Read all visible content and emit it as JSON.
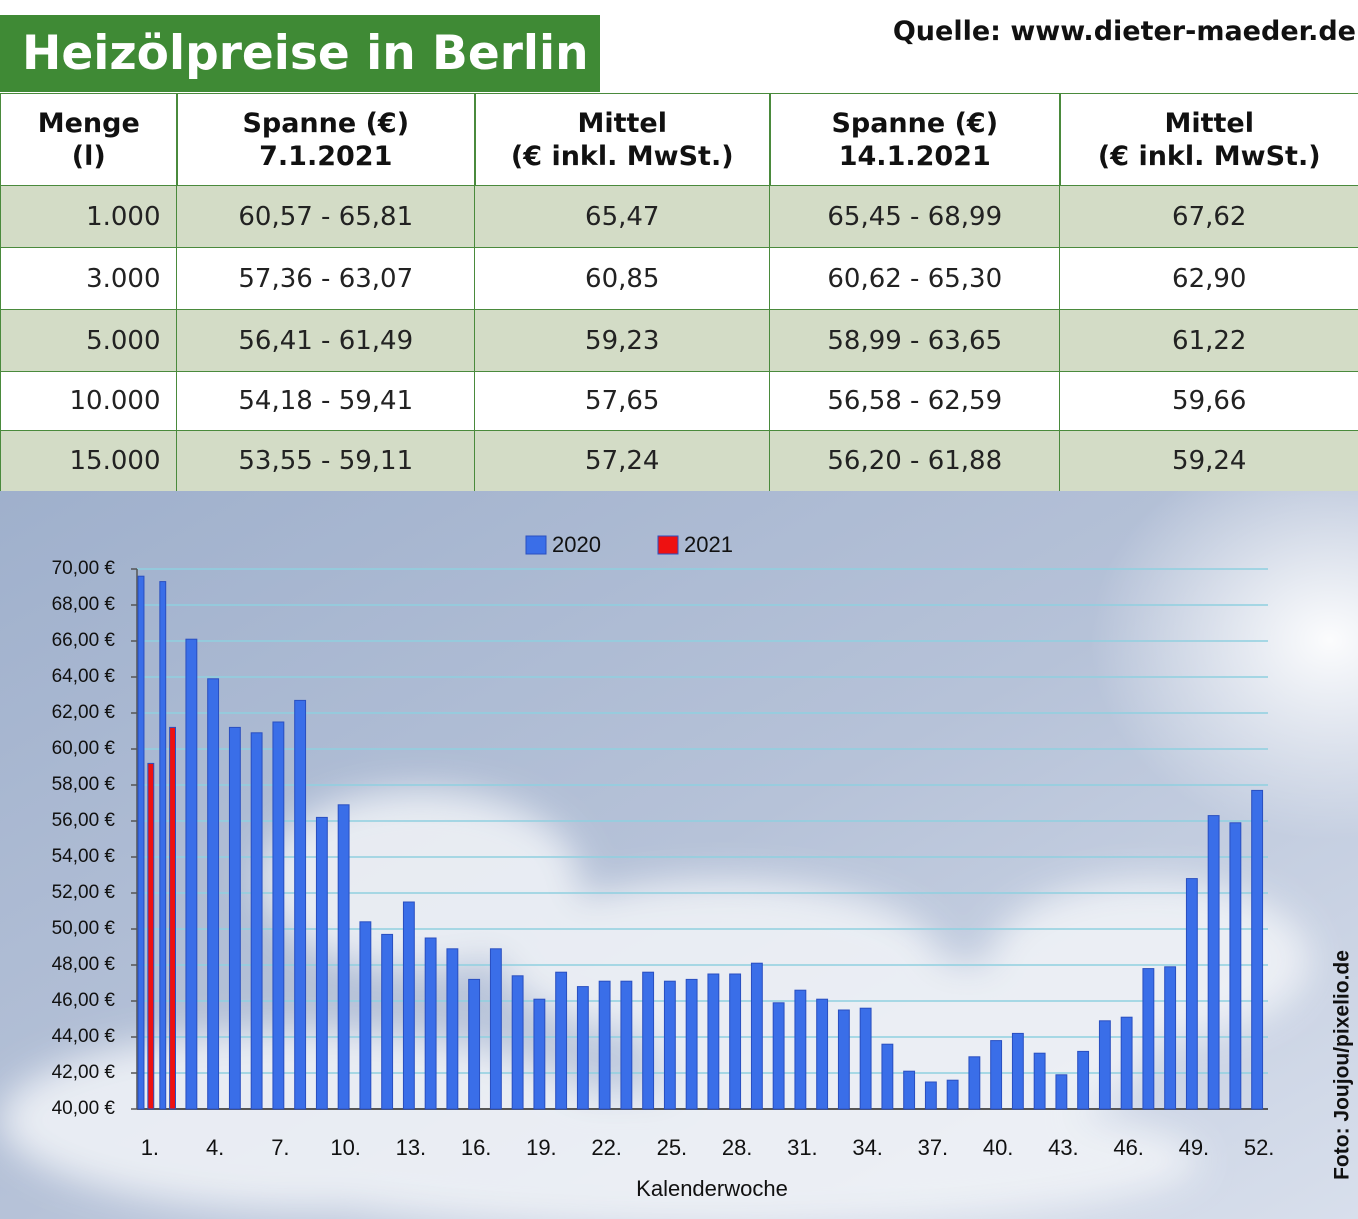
{
  "header": {
    "title": "Heizölpreise in Berlin",
    "source": "Quelle: www.dieter-maeder.de"
  },
  "table": {
    "columns": [
      [
        "Menge",
        "(l)"
      ],
      [
        "Spanne (€)",
        "7.1.2021"
      ],
      [
        "Mittel",
        "(€ inkl. MwSt.)"
      ],
      [
        "Spanne (€)",
        "14.1.2021"
      ],
      [
        "Mittel",
        "(€ inkl. MwSt.)"
      ]
    ],
    "rows": [
      [
        "1.000",
        "60,57 - 65,81",
        "65,47",
        "65,45 - 68,99",
        "67,62"
      ],
      [
        "3.000",
        "57,36 - 63,07",
        "60,85",
        "60,62 - 65,30",
        "62,90"
      ],
      [
        "5.000",
        "56,41 - 61,49",
        "59,23",
        "58,99 - 63,65",
        "61,22"
      ],
      [
        "10.000",
        "54,18 - 59,41",
        "57,65",
        "56,58 - 62,59",
        "59,66"
      ],
      [
        "15.000",
        "53,55 - 59,11",
        "57,24",
        "56,20 - 61,88",
        "59,24"
      ]
    ]
  },
  "chart_data": {
    "type": "bar",
    "x_label": "Kalenderwoche",
    "categories": [
      "1.",
      null,
      null,
      "4.",
      null,
      null,
      "7.",
      null,
      null,
      "10.",
      null,
      null,
      "13.",
      null,
      null,
      "16.",
      null,
      null,
      "19.",
      null,
      null,
      "22.",
      null,
      null,
      "25.",
      null,
      null,
      "28.",
      null,
      null,
      "31.",
      null,
      null,
      "34.",
      null,
      null,
      "37.",
      null,
      null,
      "40.",
      null,
      null,
      "43.",
      null,
      null,
      "46.",
      null,
      null,
      "49.",
      null,
      null,
      "52."
    ],
    "series": [
      {
        "name": "2020",
        "color": "#3a6ee8",
        "values": [
          69.6,
          69.3,
          66.1,
          63.9,
          61.2,
          60.9,
          61.5,
          62.7,
          56.2,
          56.9,
          50.4,
          49.7,
          51.5,
          49.5,
          48.9,
          47.2,
          48.9,
          47.4,
          46.1,
          47.6,
          46.8,
          47.1,
          47.1,
          47.6,
          47.1,
          47.2,
          47.5,
          47.5,
          48.1,
          45.9,
          46.6,
          46.1,
          45.5,
          45.6,
          43.6,
          42.1,
          41.5,
          41.6,
          42.9,
          43.8,
          44.2,
          43.1,
          41.9,
          43.2,
          44.9,
          45.1,
          47.8,
          47.9,
          52.8,
          56.3,
          55.9,
          57.7
        ]
      },
      {
        "name": "2021",
        "color": "#ee1111",
        "values": [
          59.2,
          61.2,
          null,
          null,
          null,
          null,
          null,
          null,
          null,
          null,
          null,
          null,
          null,
          null,
          null,
          null,
          null,
          null,
          null,
          null,
          null,
          null,
          null,
          null,
          null,
          null,
          null,
          null,
          null,
          null,
          null,
          null,
          null,
          null,
          null,
          null,
          null,
          null,
          null,
          null,
          null,
          null,
          null,
          null,
          null,
          null,
          null,
          null,
          null,
          null,
          null,
          null
        ]
      }
    ],
    "ylim": [
      40,
      70
    ],
    "yticks": [
      {
        "value": 40,
        "label": "40,00 €"
      },
      {
        "value": 42,
        "label": "42,00 €"
      },
      {
        "value": 44,
        "label": "44,00 €"
      },
      {
        "value": 46,
        "label": "46,00 €"
      },
      {
        "value": 48,
        "label": "48,00 €"
      },
      {
        "value": 50,
        "label": "50,00 €"
      },
      {
        "value": 52,
        "label": "52,00 €"
      },
      {
        "value": 54,
        "label": "54,00 €"
      },
      {
        "value": 56,
        "label": "56,00 €"
      },
      {
        "value": 58,
        "label": "58,00 €"
      },
      {
        "value": 60,
        "label": "60,00 €"
      },
      {
        "value": 62,
        "label": "62,00 €"
      },
      {
        "value": 64,
        "label": "64,00 €"
      },
      {
        "value": 66,
        "label": "66,00 €"
      },
      {
        "value": 68,
        "label": "68,00 €"
      },
      {
        "value": 70,
        "label": "70,00 €"
      }
    ],
    "grid": true,
    "legend": "top"
  },
  "credit": "Foto: Joujou/pixelio.de"
}
